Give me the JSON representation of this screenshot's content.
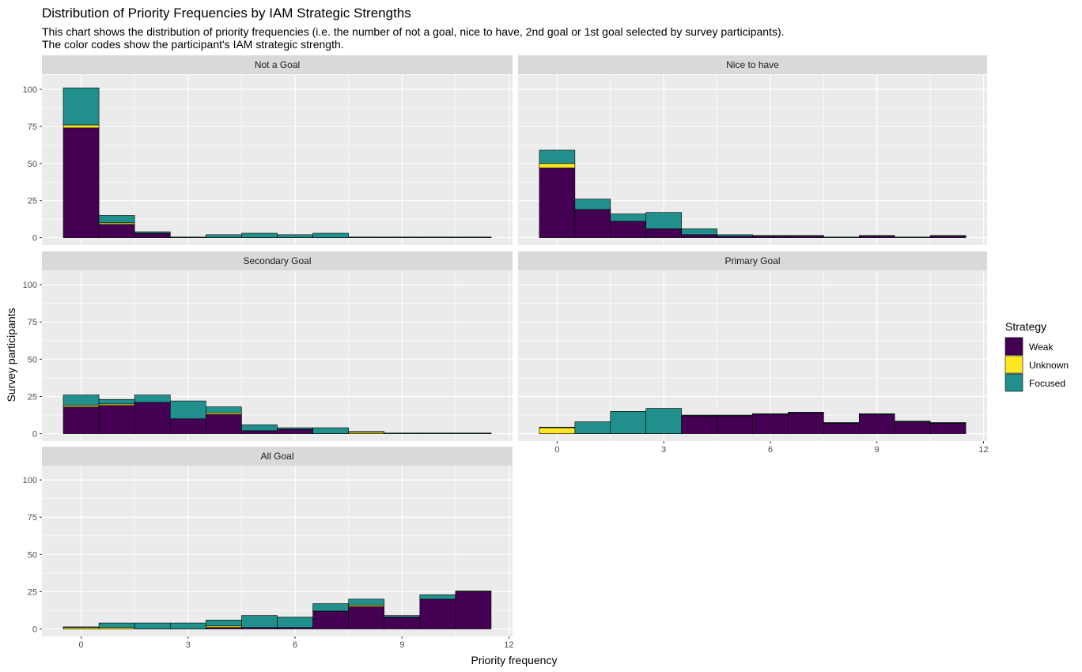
{
  "chart_data": {
    "type": "bar",
    "title": "Distribution of Priority Frequencies by IAM Strategic Strengths",
    "subtitle_lines": [
      "This chart shows the distribution of priority frequencies (i.e. the number of not a goal, nice to have, 2nd goal or 1st goal selected by survey participants).",
      "The color codes show the participant's IAM strategic strength."
    ],
    "xlabel": "Priority frequency",
    "ylabel": "Survey participants",
    "xlim": [
      -0.5,
      11.5
    ],
    "ylim": [
      0,
      100
    ],
    "x_ticks": [
      0,
      3,
      6,
      9,
      12
    ],
    "y_ticks": [
      0,
      25,
      50,
      75,
      100
    ],
    "grid": true,
    "legend": {
      "title": "Strategy",
      "position": "right",
      "entries": [
        {
          "name": "Weak",
          "color": "#440154"
        },
        {
          "name": "Unknown",
          "color": "#FDE725"
        },
        {
          "name": "Focused",
          "color": "#21908C"
        }
      ]
    },
    "categories": [
      0,
      1,
      2,
      3,
      4,
      5,
      6,
      7,
      8,
      9,
      10,
      11
    ],
    "panels": [
      {
        "name": "Not a Goal",
        "series": [
          {
            "name": "Weak",
            "values": [
              74,
              9,
              3,
              0,
              0,
              0,
              0,
              0,
              0,
              0,
              0,
              0
            ]
          },
          {
            "name": "Unknown",
            "values": [
              2,
              1,
              0,
              0,
              0,
              0,
              0,
              0,
              0,
              0,
              0,
              0
            ]
          },
          {
            "name": "Focused",
            "values": [
              25,
              5,
              1,
              0,
              2,
              3,
              2,
              3,
              0,
              0,
              0,
              0
            ]
          }
        ]
      },
      {
        "name": "Nice to have",
        "series": [
          {
            "name": "Weak",
            "values": [
              47,
              19,
              11,
              6,
              2,
              1,
              1,
              1,
              0,
              1,
              0,
              1
            ]
          },
          {
            "name": "Unknown",
            "values": [
              3,
              0,
              0,
              0,
              0,
              0,
              0,
              0,
              0,
              0,
              0,
              0
            ]
          },
          {
            "name": "Focused",
            "values": [
              9,
              7,
              5,
              11,
              4,
              1,
              0,
              0,
              0,
              0,
              0,
              0
            ]
          }
        ]
      },
      {
        "name": "Secondary Goal",
        "series": [
          {
            "name": "Weak",
            "values": [
              18,
              19,
              21,
              10,
              13,
              2,
              3,
              0,
              0,
              0,
              0,
              0
            ]
          },
          {
            "name": "Unknown",
            "values": [
              1,
              1,
              0,
              0,
              1,
              0,
              0,
              0,
              1,
              0,
              0,
              0
            ]
          },
          {
            "name": "Focused",
            "values": [
              7,
              3,
              5,
              12,
              4,
              4,
              1,
              4,
              0,
              0,
              0,
              0
            ]
          }
        ]
      },
      {
        "name": "Primary Goal",
        "series": [
          {
            "name": "Weak",
            "values": [
              0,
              0,
              0,
              0,
              12,
              12,
              13,
              14,
              7,
              13,
              8,
              7
            ]
          },
          {
            "name": "Unknown",
            "values": [
              4,
              0,
              0,
              0,
              0,
              0,
              0,
              0,
              0,
              0,
              0,
              0
            ]
          },
          {
            "name": "Focused",
            "values": [
              0,
              8,
              15,
              17,
              0,
              0,
              0,
              0,
              0,
              0,
              0,
              0
            ]
          }
        ]
      },
      {
        "name": "All Goal",
        "series": [
          {
            "name": "Weak",
            "values": [
              0,
              0,
              0,
              0,
              1,
              1,
              1,
              12,
              15,
              8,
              20,
              25
            ]
          },
          {
            "name": "Unknown",
            "values": [
              1,
              1,
              0,
              0,
              1,
              0,
              0,
              0,
              1,
              0,
              0,
              0
            ]
          },
          {
            "name": "Focused",
            "values": [
              0,
              3,
              4,
              4,
              4,
              8,
              7,
              5,
              4,
              1,
              3,
              0
            ]
          }
        ]
      }
    ]
  }
}
